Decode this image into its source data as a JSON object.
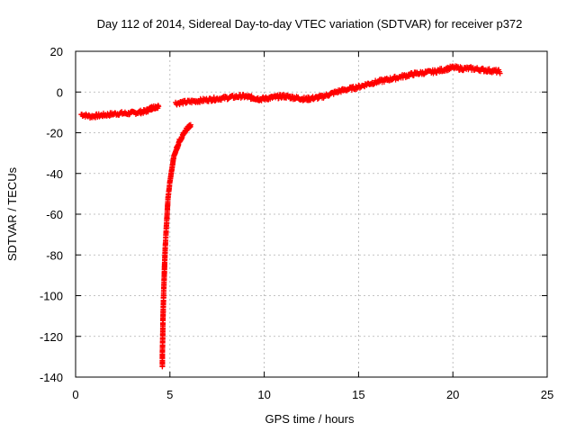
{
  "chart_data": {
    "type": "scatter",
    "title": "Day 112 of 2014, Sidereal Day-to-day VTEC variation (SDTVAR) for receiver p372",
    "xlabel": "GPS time / hours",
    "ylabel": "SDTVAR / TECUs",
    "xlim": [
      0,
      25
    ],
    "ylim": [
      -140,
      20
    ],
    "xticks": [
      0,
      5,
      10,
      15,
      20,
      25
    ],
    "yticks": [
      -140,
      -120,
      -100,
      -80,
      -60,
      -40,
      -20,
      0,
      20
    ],
    "grid": true,
    "marker": "+",
    "color": "#ff0000",
    "series": [
      {
        "name": "SDTVAR",
        "segments": [
          {
            "x": [
              0.3,
              0.8,
              1.3,
              1.8,
              2.3,
              2.8,
              3.3,
              3.7,
              4.0,
              4.1,
              4.4
            ],
            "y": [
              -11,
              -12,
              -11.5,
              -11,
              -10.5,
              -10.5,
              -10,
              -9.5,
              -8,
              -7.5,
              -7
            ]
          },
          {
            "x": [
              4.6,
              4.6,
              4.62,
              4.63,
              4.65,
              4.67,
              4.7,
              4.72,
              4.75,
              4.8,
              4.85,
              4.9,
              5.0,
              5.1,
              5.2,
              5.35,
              5.5,
              5.7,
              5.9,
              6.1
            ],
            "y": [
              -135,
              -128,
              -120,
              -112,
              -105,
              -98,
              -90,
              -84,
              -77,
              -68,
              -60,
              -52,
              -44,
              -38,
              -32,
              -28,
              -24,
              -21,
              -18,
              -16
            ]
          },
          {
            "x": [
              5.3,
              5.8,
              6.3,
              6.8,
              7.3,
              7.8,
              8.3,
              8.8,
              9.2,
              9.5,
              9.8,
              10.2,
              10.6,
              11.0,
              11.4,
              11.8,
              12.2,
              12.6,
              13.0,
              13.5,
              14.0,
              14.5,
              15.0,
              15.5,
              16.0,
              16.5,
              17.0,
              17.5,
              18.0,
              18.5,
              19.0,
              19.5,
              20.0,
              20.5,
              21.0,
              21.5,
              22.0,
              22.5
            ],
            "y": [
              -5.5,
              -5,
              -4.5,
              -4,
              -3.5,
              -3,
              -2.5,
              -2,
              -2.5,
              -3,
              -3.5,
              -3,
              -2.5,
              -2,
              -2.5,
              -3,
              -3.5,
              -3,
              -2.5,
              -1,
              0.5,
              1.5,
              2.5,
              4,
              5,
              6,
              7,
              8,
              9,
              9.5,
              10,
              11,
              12,
              11.5,
              11.5,
              11,
              10.5,
              10
            ]
          }
        ]
      }
    ]
  }
}
